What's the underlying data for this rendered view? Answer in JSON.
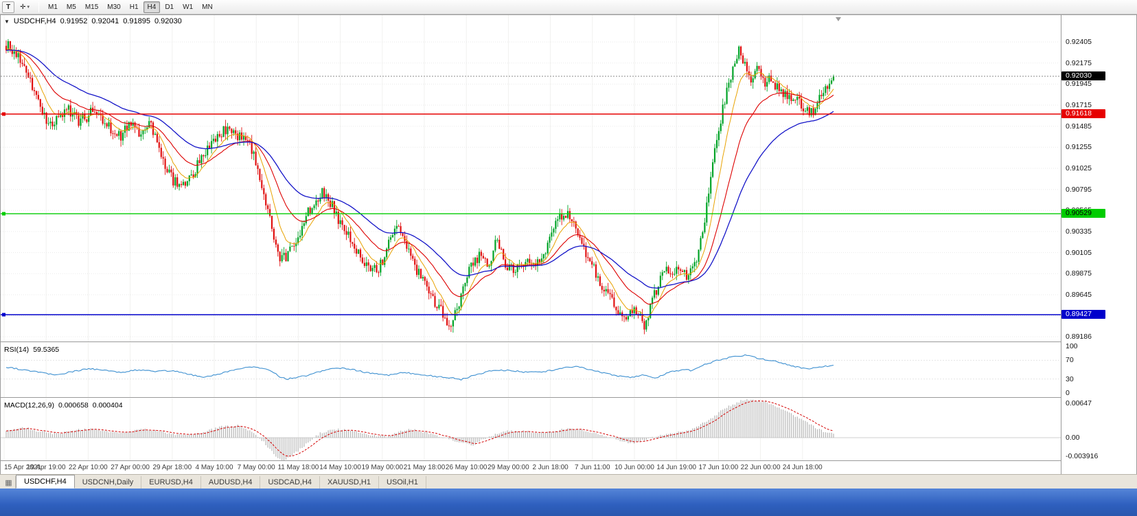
{
  "toolbar": {
    "t_button": "T",
    "crosshair_glyph": "✛",
    "dropdown_glyph": "▾",
    "timeframes": [
      "M1",
      "M5",
      "M15",
      "M30",
      "H1",
      "H4",
      "D1",
      "W1",
      "MN"
    ],
    "active_timeframe": "H4"
  },
  "chart": {
    "header": {
      "marker": "▼",
      "symbol": "USDCHF,H4",
      "open": "0.91952",
      "high": "0.92041",
      "low": "0.91895",
      "close": "0.92030"
    },
    "price_axis": [
      "0.92405",
      "0.92175",
      "0.91945",
      "0.91715",
      "0.91485",
      "0.91255",
      "0.91025",
      "0.90795",
      "0.90565",
      "0.90335",
      "0.90105",
      "0.89875",
      "0.89645",
      "0.89415",
      "0.89186"
    ],
    "levels": [
      {
        "price": 0.91618,
        "label": "0.91618",
        "color": "#e60000",
        "text_color": "#ffffff"
      },
      {
        "price": 0.90529,
        "label": "0.90529",
        "color": "#00cc00",
        "text_color": "#000000"
      },
      {
        "price": 0.89427,
        "label": "0.89427",
        "color": "#0000cc",
        "text_color": "#ffffff"
      }
    ],
    "current_price": {
      "value": 0.9203,
      "label": "0.92030",
      "badge_color": "#000000",
      "text_color": "#ffffff"
    },
    "time_axis": [
      "15 Apr 2021",
      "19 Apr 19:00",
      "22 Apr 10:00",
      "27 Apr 00:00",
      "29 Apr 18:00",
      "4 May 10:00",
      "7 May 00:00",
      "11 May 18:00",
      "14 May 10:00",
      "19 May 00:00",
      "21 May 18:00",
      "26 May 10:00",
      "29 May 00:00",
      "2 Jun 18:00",
      "7 Jun 11:00",
      "10 Jun 00:00",
      "14 Jun 19:00",
      "17 Jun 10:00",
      "22 Jun 00:00",
      "24 Jun 18:00"
    ]
  },
  "rsi": {
    "name": "RSI(14)",
    "value": "59.5365",
    "scale": [
      "100",
      "70",
      "30",
      "0"
    ],
    "line_color": "#3c8fd0"
  },
  "macd": {
    "name": "MACD(12,26,9)",
    "value": "0.000658",
    "signal": "0.000404",
    "scale_max": "0.00647",
    "scale_zero": "0.00",
    "scale_min": "-0.003916",
    "bar_color": "#b6b6b6",
    "signal_color": "#d40000"
  },
  "tabs": [
    {
      "label": "USDCHF,H4",
      "active": true
    },
    {
      "label": "USDCNH,Daily",
      "active": false
    },
    {
      "label": "EURUSD,H4",
      "active": false
    },
    {
      "label": "AUDUSD,H4",
      "active": false
    },
    {
      "label": "USDCAD,H4",
      "active": false
    },
    {
      "label": "XAUUSD,H1",
      "active": false
    },
    {
      "label": "USOil,H1",
      "active": false
    }
  ],
  "chart_data": {
    "type": "candlestick",
    "symbol": "USDCHF",
    "timeframe": "H4",
    "n_candles": 412,
    "last_close": 0.9203,
    "x_range": [
      "15 Apr 2021",
      "25 Jun 2021"
    ],
    "y_axis": {
      "price_top": 0.92698,
      "price_bottom": 0.89127
    },
    "colors": {
      "up": "#00a326",
      "down": "#e01010"
    },
    "ma": [
      {
        "period": 10,
        "color": "#e8a200",
        "width": 1
      },
      {
        "period": 26,
        "color": "#dd0000",
        "width": 1.1
      },
      {
        "period": 55,
        "color": "#1414c8",
        "width": 1.3
      }
    ],
    "price_anchors": [
      [
        0,
        0.9237
      ],
      [
        0.014,
        0.9228
      ],
      [
        0.027,
        0.9207
      ],
      [
        0.039,
        0.9172
      ],
      [
        0.052,
        0.915
      ],
      [
        0.064,
        0.9161
      ],
      [
        0.076,
        0.9166
      ],
      [
        0.089,
        0.9152
      ],
      [
        0.101,
        0.9163
      ],
      [
        0.114,
        0.9157
      ],
      [
        0.126,
        0.9147
      ],
      [
        0.139,
        0.9139
      ],
      [
        0.151,
        0.9149
      ],
      [
        0.164,
        0.9141
      ],
      [
        0.174,
        0.915
      ],
      [
        0.186,
        0.9118
      ],
      [
        0.198,
        0.9094
      ],
      [
        0.211,
        0.9079
      ],
      [
        0.221,
        0.9088
      ],
      [
        0.233,
        0.9108
      ],
      [
        0.244,
        0.9126
      ],
      [
        0.257,
        0.9136
      ],
      [
        0.269,
        0.9151
      ],
      [
        0.282,
        0.9136
      ],
      [
        0.294,
        0.9131
      ],
      [
        0.306,
        0.9098
      ],
      [
        0.319,
        0.9043
      ],
      [
        0.331,
        0.9
      ],
      [
        0.344,
        0.9012
      ],
      [
        0.356,
        0.9036
      ],
      [
        0.369,
        0.9062
      ],
      [
        0.38,
        0.9076
      ],
      [
        0.39,
        0.9069
      ],
      [
        0.402,
        0.9044
      ],
      [
        0.414,
        0.9029
      ],
      [
        0.427,
        0.9009
      ],
      [
        0.439,
        0.8989
      ],
      [
        0.452,
        0.8996
      ],
      [
        0.464,
        0.9026
      ],
      [
        0.475,
        0.9036
      ],
      [
        0.488,
        0.9009
      ],
      [
        0.5,
        0.8984
      ],
      [
        0.512,
        0.8964
      ],
      [
        0.525,
        0.895
      ],
      [
        0.537,
        0.8928
      ],
      [
        0.55,
        0.8962
      ],
      [
        0.561,
        0.8996
      ],
      [
        0.573,
        0.9006
      ],
      [
        0.585,
        0.8999
      ],
      [
        0.593,
        0.9031
      ],
      [
        0.601,
        0.9001
      ],
      [
        0.613,
        0.8992
      ],
      [
        0.625,
        0.9001
      ],
      [
        0.636,
        0.8994
      ],
      [
        0.65,
        0.9011
      ],
      [
        0.663,
        0.9041
      ],
      [
        0.674,
        0.9056
      ],
      [
        0.685,
        0.9049
      ],
      [
        0.696,
        0.9019
      ],
      [
        0.708,
        0.8996
      ],
      [
        0.72,
        0.8976
      ],
      [
        0.733,
        0.8959
      ],
      [
        0.746,
        0.8934
      ],
      [
        0.757,
        0.8951
      ],
      [
        0.771,
        0.8931
      ],
      [
        0.783,
        0.8962
      ],
      [
        0.796,
        0.8991
      ],
      [
        0.808,
        0.899
      ],
      [
        0.82,
        0.8985
      ],
      [
        0.833,
        0.8997
      ],
      [
        0.843,
        0.9042
      ],
      [
        0.851,
        0.9086
      ],
      [
        0.86,
        0.9139
      ],
      [
        0.868,
        0.9176
      ],
      [
        0.876,
        0.9206
      ],
      [
        0.885,
        0.9231
      ],
      [
        0.891,
        0.9216
      ],
      [
        0.9,
        0.9201
      ],
      [
        0.908,
        0.9211
      ],
      [
        0.916,
        0.9196
      ],
      [
        0.924,
        0.9201
      ],
      [
        0.937,
        0.9186
      ],
      [
        0.949,
        0.9181
      ],
      [
        0.962,
        0.9171
      ],
      [
        0.974,
        0.9162
      ],
      [
        0.984,
        0.9186
      ],
      [
        0.993,
        0.9196
      ],
      [
        1,
        0.9203
      ]
    ],
    "rsi_anchors": [
      [
        0,
        55
      ],
      [
        0.02,
        50
      ],
      [
        0.04,
        44
      ],
      [
        0.06,
        38
      ],
      [
        0.08,
        46
      ],
      [
        0.1,
        52
      ],
      [
        0.12,
        48
      ],
      [
        0.14,
        44
      ],
      [
        0.16,
        50
      ],
      [
        0.18,
        46
      ],
      [
        0.2,
        48
      ],
      [
        0.22,
        40
      ],
      [
        0.24,
        34
      ],
      [
        0.26,
        42
      ],
      [
        0.28,
        52
      ],
      [
        0.3,
        56
      ],
      [
        0.32,
        48
      ],
      [
        0.33,
        35
      ],
      [
        0.34,
        30
      ],
      [
        0.36,
        36
      ],
      [
        0.38,
        46
      ],
      [
        0.4,
        54
      ],
      [
        0.42,
        50
      ],
      [
        0.44,
        42
      ],
      [
        0.46,
        38
      ],
      [
        0.48,
        44
      ],
      [
        0.5,
        40
      ],
      [
        0.52,
        35
      ],
      [
        0.54,
        32
      ],
      [
        0.55,
        29
      ],
      [
        0.57,
        40
      ],
      [
        0.59,
        50
      ],
      [
        0.61,
        48
      ],
      [
        0.63,
        44
      ],
      [
        0.65,
        46
      ],
      [
        0.67,
        52
      ],
      [
        0.69,
        58
      ],
      [
        0.71,
        48
      ],
      [
        0.73,
        40
      ],
      [
        0.75,
        33
      ],
      [
        0.77,
        38
      ],
      [
        0.785,
        32
      ],
      [
        0.8,
        44
      ],
      [
        0.82,
        50
      ],
      [
        0.83,
        48
      ],
      [
        0.84,
        58
      ],
      [
        0.86,
        70
      ],
      [
        0.88,
        78
      ],
      [
        0.895,
        81
      ],
      [
        0.91,
        74
      ],
      [
        0.93,
        68
      ],
      [
        0.945,
        60
      ],
      [
        0.96,
        54
      ],
      [
        0.97,
        50
      ],
      [
        0.98,
        55
      ],
      [
        1,
        59.5
      ]
    ],
    "macd_anchors": [
      [
        0,
        0.0012
      ],
      [
        0.02,
        0.0018
      ],
      [
        0.04,
        0.001
      ],
      [
        0.06,
        0.0006
      ],
      [
        0.08,
        0.0012
      ],
      [
        0.1,
        0.0015
      ],
      [
        0.12,
        0.001
      ],
      [
        0.14,
        0.0008
      ],
      [
        0.16,
        0.0014
      ],
      [
        0.18,
        0.0012
      ],
      [
        0.2,
        0.0006
      ],
      [
        0.22,
        0.0004
      ],
      [
        0.24,
        0.001
      ],
      [
        0.26,
        0.0018
      ],
      [
        0.28,
        0.002
      ],
      [
        0.295,
        0.0012
      ],
      [
        0.31,
        -0.0005
      ],
      [
        0.325,
        -0.003
      ],
      [
        0.335,
        -0.0039
      ],
      [
        0.35,
        -0.0025
      ],
      [
        0.365,
        -0.0008
      ],
      [
        0.38,
        0.0008
      ],
      [
        0.4,
        0.0014
      ],
      [
        0.42,
        0.0012
      ],
      [
        0.44,
        0.0004
      ],
      [
        0.46,
        0.0002
      ],
      [
        0.475,
        0.001
      ],
      [
        0.49,
        0.0014
      ],
      [
        0.51,
        0.0008
      ],
      [
        0.53,
        0
      ],
      [
        0.55,
        -0.0008
      ],
      [
        0.565,
        -0.0012
      ],
      [
        0.58,
        0
      ],
      [
        0.6,
        0.001
      ],
      [
        0.62,
        0.0012
      ],
      [
        0.64,
        0.0008
      ],
      [
        0.66,
        0.001
      ],
      [
        0.68,
        0.0016
      ],
      [
        0.7,
        0.0012
      ],
      [
        0.72,
        0.0004
      ],
      [
        0.74,
        -0.0004
      ],
      [
        0.755,
        -0.001
      ],
      [
        0.77,
        -0.0004
      ],
      [
        0.79,
        0.0004
      ],
      [
        0.81,
        0.0008
      ],
      [
        0.83,
        0.0014
      ],
      [
        0.85,
        0.003
      ],
      [
        0.87,
        0.005
      ],
      [
        0.89,
        0.0062
      ],
      [
        0.9,
        0.0064
      ],
      [
        0.92,
        0.0058
      ],
      [
        0.94,
        0.0046
      ],
      [
        0.96,
        0.0032
      ],
      [
        0.98,
        0.0016
      ],
      [
        0.99,
        0.0009
      ],
      [
        1,
        0.00066
      ]
    ],
    "macd_range": {
      "max": 0.00647,
      "min": -0.003916
    }
  }
}
